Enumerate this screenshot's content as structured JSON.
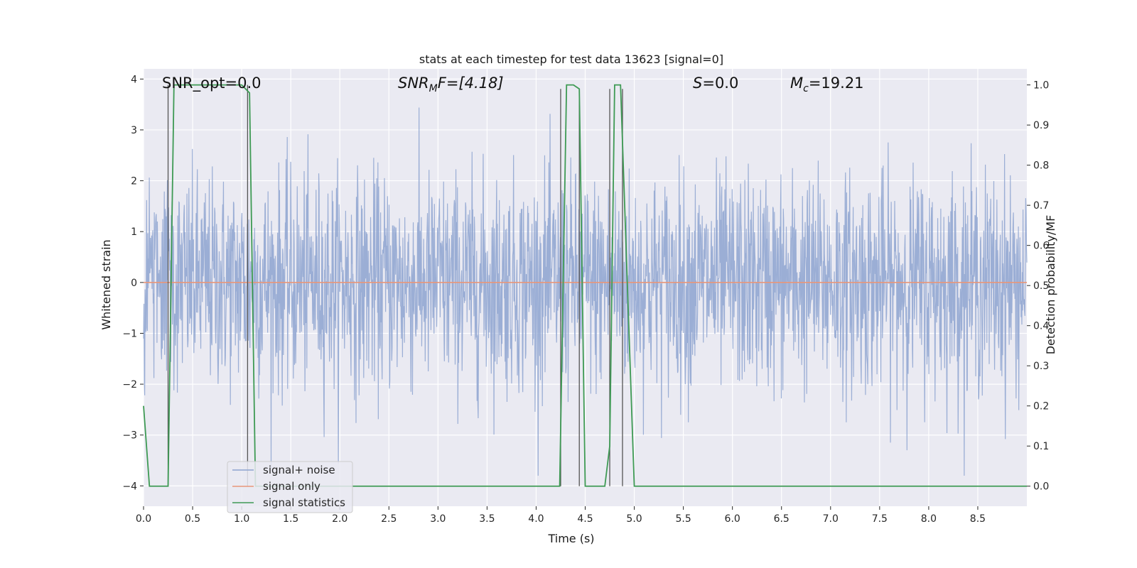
{
  "chart_data": {
    "type": "line",
    "title": "stats at each timestep for test data 13623 [signal=0]",
    "xlabel": "Time (s)",
    "ylabel": "Whitened strain",
    "y2label": "Detection probability/MF",
    "xlim": [
      0.0,
      9.0
    ],
    "ylim": [
      -4.4,
      4.2
    ],
    "y2lim": [
      -0.05,
      1.04
    ],
    "xticks": [
      "0.0",
      "0.5",
      "1.0",
      "1.5",
      "2.0",
      "2.5",
      "3.0",
      "3.5",
      "4.0",
      "4.5",
      "5.0",
      "5.5",
      "6.0",
      "6.5",
      "7.0",
      "7.5",
      "8.0",
      "8.5"
    ],
    "yticks": [
      "4",
      "3",
      "2",
      "1",
      "0",
      "−1",
      "−2",
      "−3",
      "−4"
    ],
    "y2ticks": [
      "1.0",
      "0.9",
      "0.8",
      "0.7",
      "0.6",
      "0.5",
      "0.4",
      "0.3",
      "0.2",
      "0.1",
      "0.0"
    ],
    "annotations": {
      "snr_opt": "SNR_opt=0.0",
      "snr_mf_prefix": "SNR",
      "snr_mf_sub": "M",
      "snr_mf_suffix": "F=[4.18]",
      "s_prefix": "S",
      "s_suffix": "=0.0",
      "mc_prefix": "M",
      "mc_sub": "c",
      "mc_suffix": "=19.21"
    },
    "legend": {
      "position": "lower-left",
      "entries": [
        "signal+ noise",
        "signal only",
        "signal statistics"
      ]
    },
    "series": [
      {
        "name": "signal+ noise",
        "color": "#8da3d0",
        "kind": "noise",
        "std": 1.0,
        "peak_range": [
          -3.8,
          3.9
        ]
      },
      {
        "name": "signal only",
        "color": "#e8967a",
        "x": [
          0.0,
          9.0
        ],
        "y": [
          0.0,
          0.0
        ]
      },
      {
        "name": "signal statistics",
        "color": "#3e9a54",
        "axis": "right",
        "x": [
          0.0,
          0.06,
          0.25,
          0.31,
          1.0,
          1.08,
          1.14,
          1.2,
          1.26,
          1.32,
          1.38,
          1.45,
          1.5,
          1.7,
          1.9,
          2.1,
          2.2,
          2.4,
          3.0,
          3.5,
          4.0,
          4.24,
          4.31,
          4.38,
          4.44,
          4.5,
          4.6,
          4.7,
          4.75,
          4.8,
          4.86,
          5.0,
          9.0
        ],
        "y": [
          0.2,
          0.0,
          0.0,
          1.0,
          1.0,
          0.98,
          0.0,
          0.0,
          0.0,
          0.0,
          0.0,
          0.0,
          0.0,
          0.0,
          0.0,
          0.0,
          0.0,
          0.0,
          0.0,
          0.0,
          0.0,
          0.0,
          1.0,
          1.0,
          0.99,
          0.0,
          0.0,
          0.0,
          0.1,
          1.0,
          1.0,
          0.0,
          0.0
        ]
      }
    ],
    "vlines": [
      {
        "x": 0.25,
        "y2": [
          0.0,
          1.0
        ]
      },
      {
        "x": 1.06,
        "y2": [
          0.0,
          1.0
        ]
      },
      {
        "x": 4.25,
        "y2": [
          0.0,
          0.99
        ]
      },
      {
        "x": 4.44,
        "y2": [
          0.0,
          0.99
        ]
      },
      {
        "x": 4.75,
        "y2": [
          0.0,
          0.99
        ]
      },
      {
        "x": 4.88,
        "y2": [
          0.0,
          0.99
        ]
      }
    ]
  }
}
